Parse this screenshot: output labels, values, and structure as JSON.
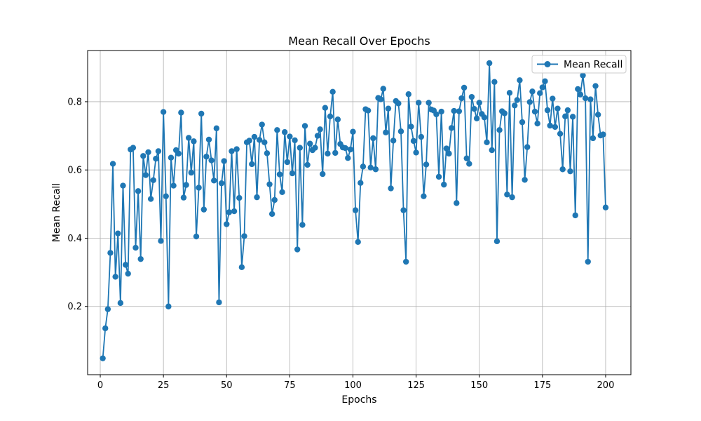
{
  "chart_data": {
    "type": "line",
    "title": "Mean Recall Over Epochs",
    "xlabel": "Epochs",
    "ylabel": "Mean Recall",
    "xlim": [
      -5,
      210
    ],
    "ylim": [
      0.0,
      0.95
    ],
    "xticks": [
      0,
      25,
      50,
      75,
      100,
      125,
      150,
      175,
      200
    ],
    "yticks": [
      0.2,
      0.4,
      0.6,
      0.8
    ],
    "ytick_labels": [
      "0.2",
      "0.4",
      "0.6",
      "0.8"
    ],
    "grid": true,
    "legend_position": "top-right",
    "series": [
      {
        "name": "Mean Recall",
        "color": "#1f77b4",
        "marker": "circle",
        "x": [
          1,
          2,
          3,
          4,
          5,
          6,
          7,
          8,
          9,
          10,
          11,
          12,
          13,
          14,
          15,
          16,
          17,
          18,
          19,
          20,
          21,
          22,
          23,
          24,
          25,
          26,
          27,
          28,
          29,
          30,
          31,
          32,
          33,
          34,
          35,
          36,
          37,
          38,
          39,
          40,
          41,
          42,
          43,
          44,
          45,
          46,
          47,
          48,
          49,
          50,
          51,
          52,
          53,
          54,
          55,
          56,
          57,
          58,
          59,
          60,
          61,
          62,
          63,
          64,
          65,
          66,
          67,
          68,
          69,
          70,
          71,
          72,
          73,
          74,
          75,
          76,
          77,
          78,
          79,
          80,
          81,
          82,
          83,
          84,
          85,
          86,
          87,
          88,
          89,
          90,
          91,
          92,
          93,
          94,
          95,
          96,
          97,
          98,
          99,
          100,
          101,
          102,
          103,
          104,
          105,
          106,
          107,
          108,
          109,
          110,
          111,
          112,
          113,
          114,
          115,
          116,
          117,
          118,
          119,
          120,
          121,
          122,
          123,
          124,
          125,
          126,
          127,
          128,
          129,
          130,
          131,
          132,
          133,
          134,
          135,
          136,
          137,
          138,
          139,
          140,
          141,
          142,
          143,
          144,
          145,
          146,
          147,
          148,
          149,
          150,
          151,
          152,
          153,
          154,
          155,
          156,
          157,
          158,
          159,
          160,
          161,
          162,
          163,
          164,
          165,
          166,
          167,
          168,
          169,
          170,
          171,
          172,
          173,
          174,
          175,
          176,
          177,
          178,
          179,
          180,
          181,
          182,
          183,
          184,
          185,
          186,
          187,
          188,
          189,
          190,
          191,
          192,
          193,
          194,
          195,
          196,
          197,
          198,
          199,
          200
        ],
        "values": [
          0.048,
          0.136,
          0.192,
          0.357,
          0.618,
          0.287,
          0.414,
          0.21,
          0.554,
          0.322,
          0.296,
          0.66,
          0.665,
          0.372,
          0.538,
          0.339,
          0.641,
          0.585,
          0.652,
          0.515,
          0.57,
          0.633,
          0.655,
          0.392,
          0.77,
          0.523,
          0.2,
          0.636,
          0.554,
          0.658,
          0.648,
          0.768,
          0.519,
          0.556,
          0.694,
          0.592,
          0.684,
          0.405,
          0.548,
          0.765,
          0.484,
          0.639,
          0.689,
          0.628,
          0.569,
          0.722,
          0.212,
          0.561,
          0.626,
          0.441,
          0.476,
          0.655,
          0.479,
          0.661,
          0.518,
          0.315,
          0.406,
          0.681,
          0.686,
          0.617,
          0.697,
          0.52,
          0.688,
          0.733,
          0.681,
          0.649,
          0.558,
          0.471,
          0.512,
          0.717,
          0.587,
          0.535,
          0.711,
          0.623,
          0.698,
          0.59,
          0.687,
          0.367,
          0.665,
          0.439,
          0.729,
          0.615,
          0.677,
          0.658,
          0.665,
          0.7,
          0.719,
          0.588,
          0.782,
          0.648,
          0.757,
          0.829,
          0.65,
          0.748,
          0.676,
          0.666,
          0.664,
          0.635,
          0.66,
          0.712,
          0.482,
          0.389,
          0.562,
          0.61,
          0.778,
          0.774,
          0.607,
          0.693,
          0.602,
          0.811,
          0.807,
          0.838,
          0.71,
          0.78,
          0.546,
          0.686,
          0.802,
          0.795,
          0.713,
          0.482,
          0.331,
          0.822,
          0.727,
          0.685,
          0.651,
          0.797,
          0.697,
          0.523,
          0.616,
          0.797,
          0.777,
          0.774,
          0.763,
          0.58,
          0.771,
          0.557,
          0.663,
          0.648,
          0.723,
          0.773,
          0.503,
          0.772,
          0.81,
          0.841,
          0.634,
          0.618,
          0.814,
          0.779,
          0.751,
          0.797,
          0.764,
          0.754,
          0.681,
          0.913,
          0.658,
          0.858,
          0.391,
          0.717,
          0.772,
          0.766,
          0.528,
          0.826,
          0.52,
          0.789,
          0.805,
          0.863,
          0.74,
          0.571,
          0.667,
          0.799,
          0.83,
          0.771,
          0.736,
          0.825,
          0.842,
          0.86,
          0.775,
          0.73,
          0.809,
          0.726,
          0.78,
          0.706,
          0.602,
          0.757,
          0.775,
          0.596,
          0.756,
          0.467,
          0.837,
          0.821,
          0.877,
          0.81,
          0.331,
          0.807,
          0.693,
          0.846,
          0.762,
          0.701,
          0.704,
          0.49
        ]
      }
    ]
  }
}
